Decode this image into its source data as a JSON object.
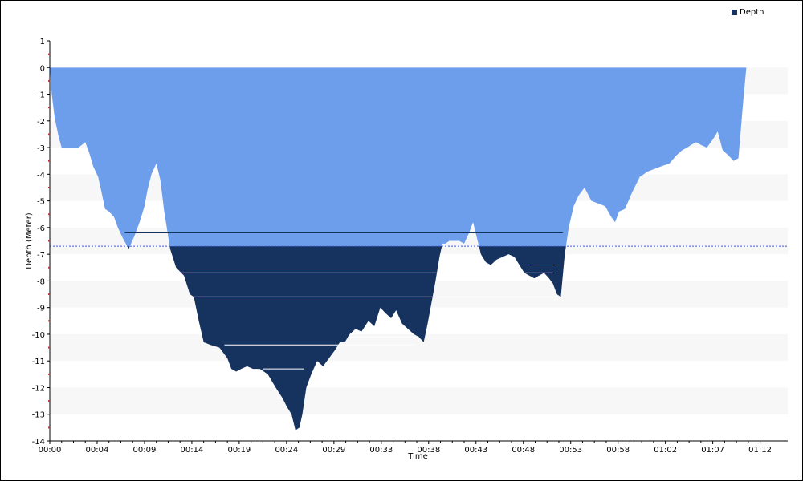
{
  "colors": {
    "shallow_fill": "#6d9eeb",
    "deep_fill": "#16325f",
    "threshold_line": "#3a5ed8",
    "band": "#f7f7f7",
    "tick_marks": "#c0392b"
  },
  "chart_data": {
    "type": "area",
    "title": "",
    "xlabel": "Time",
    "ylabel": "Depth (Meter)",
    "legend": {
      "position": "top-right",
      "entries": [
        "Depth"
      ]
    },
    "grid": "alternating horizontal bands",
    "ylim": [
      -14,
      1
    ],
    "yticks": [
      1,
      0,
      -1,
      -2,
      -3,
      -4,
      -5,
      -6,
      -7,
      -8,
      -9,
      -10,
      -11,
      -12,
      -13,
      -14
    ],
    "ytick_labels": [
      "1",
      "0",
      "-1",
      "-2",
      "-3",
      "-4",
      "-5",
      "-6",
      "-7",
      "-8",
      "-9",
      "-10",
      "-11",
      "-12",
      "-13",
      "-14"
    ],
    "xlim_minutes": [
      0,
      74.8
    ],
    "xticks_minutes": [
      0,
      4.8,
      9.6,
      14.4,
      19.2,
      24,
      28.8,
      33.6,
      38.4,
      43.2,
      48,
      52.8,
      57.6,
      62.4,
      67.2,
      72
    ],
    "xtick_labels": [
      "00:00",
      "00:04",
      "00:09",
      "00:14",
      "00:19",
      "00:24",
      "00:29",
      "00:33",
      "00:38",
      "00:43",
      "00:48",
      "00:53",
      "00:58",
      "01:02",
      "01:07",
      "01:12"
    ],
    "threshold_depth": -6.7,
    "series": [
      {
        "name": "Depth",
        "x_minutes": [
          0,
          0.2,
          0.5,
          0.9,
          1.2,
          1.6,
          2.2,
          2.9,
          3.6,
          4.0,
          4.4,
          4.9,
          5.2,
          5.6,
          6.0,
          6.5,
          6.9,
          7.4,
          8.0,
          8.6,
          9.1,
          9.6,
          9.9,
          10.3,
          10.8,
          11.2,
          11.6,
          12.2,
          12.8,
          13.6,
          14.2,
          14.6,
          15.1,
          15.6,
          16.3,
          17.2,
          18.0,
          18.4,
          18.9,
          19.4,
          20.0,
          20.6,
          21.3,
          22.1,
          22.9,
          23.6,
          24.0,
          24.5,
          24.9,
          25.3,
          25.6,
          26.0,
          26.5,
          27.1,
          27.7,
          28.3,
          28.9,
          29.4,
          29.9,
          30.4,
          31.0,
          31.6,
          32.3,
          32.9,
          33.5,
          34.0,
          34.6,
          35.1,
          35.7,
          36.3,
          36.9,
          37.4,
          37.9,
          38.3,
          38.6,
          39.1,
          39.5,
          39.8,
          40.1,
          40.5,
          41.0,
          41.5,
          42.0,
          42.5,
          42.9,
          43.3,
          43.7,
          44.2,
          44.7,
          45.3,
          45.9,
          46.5,
          47.1,
          47.6,
          48.1,
          48.6,
          49.1,
          49.6,
          50.1,
          50.6,
          51.0,
          51.4,
          51.8,
          52.2,
          52.6,
          53.1,
          53.6,
          54.2,
          54.9,
          55.6,
          56.3,
          56.9,
          57.3,
          57.7,
          58.3,
          59.0,
          59.8,
          60.6,
          61.3,
          62.0,
          62.8,
          63.5,
          64.1,
          64.6,
          65.0,
          65.5,
          66.0,
          66.6,
          67.2,
          67.7,
          68.2,
          68.8,
          69.3,
          69.8,
          70.3,
          70.6
        ],
        "y_depth": [
          0,
          -1.0,
          -1.9,
          -2.6,
          -3.0,
          -3.0,
          -3.0,
          -3.0,
          -2.8,
          -3.2,
          -3.7,
          -4.1,
          -4.6,
          -5.3,
          -5.4,
          -5.6,
          -6.0,
          -6.4,
          -6.8,
          -6.3,
          -5.8,
          -5.2,
          -4.6,
          -4.0,
          -3.6,
          -4.2,
          -5.4,
          -6.8,
          -7.5,
          -7.8,
          -8.5,
          -8.6,
          -9.5,
          -10.3,
          -10.4,
          -10.5,
          -10.9,
          -11.3,
          -11.4,
          -11.3,
          -11.2,
          -11.3,
          -11.3,
          -11.5,
          -12.0,
          -12.4,
          -12.7,
          -13.0,
          -13.6,
          -13.5,
          -13.0,
          -12.0,
          -11.5,
          -11.0,
          -11.2,
          -10.9,
          -10.6,
          -10.3,
          -10.3,
          -10.0,
          -9.8,
          -9.9,
          -9.5,
          -9.7,
          -9.0,
          -9.2,
          -9.4,
          -9.1,
          -9.6,
          -9.8,
          -10.0,
          -10.1,
          -10.3,
          -9.6,
          -9.0,
          -8.0,
          -7.1,
          -6.6,
          -6.6,
          -6.5,
          -6.5,
          -6.5,
          -6.6,
          -6.2,
          -5.8,
          -6.4,
          -7.0,
          -7.3,
          -7.4,
          -7.2,
          -7.1,
          -7.0,
          -7.1,
          -7.4,
          -7.7,
          -7.8,
          -7.9,
          -7.8,
          -7.7,
          -7.9,
          -8.1,
          -8.5,
          -8.6,
          -7.0,
          -6.0,
          -5.2,
          -4.8,
          -4.5,
          -5.0,
          -5.1,
          -5.2,
          -5.6,
          -5.8,
          -5.4,
          -5.3,
          -4.7,
          -4.1,
          -3.9,
          -3.8,
          -3.7,
          -3.6,
          -3.3,
          -3.1,
          -3.0,
          -2.9,
          -2.8,
          -2.9,
          -3.0,
          -2.7,
          -2.4,
          -3.1,
          -3.3,
          -3.5,
          -3.4,
          -1.2,
          0
        ]
      }
    ],
    "horizontal_lines": [
      {
        "depth": -6.2,
        "from_minutes": 7.6,
        "to_minutes": 52.0
      },
      {
        "depth": -7.4,
        "from_minutes": 48.8,
        "to_minutes": 51.5
      },
      {
        "depth": -7.7,
        "from_minutes": 12.5,
        "to_minutes": 51.0
      },
      {
        "depth": -8.6,
        "from_minutes": 14.6,
        "to_minutes": 51.8
      },
      {
        "depth": -10.1,
        "from_minutes": 30.2,
        "to_minutes": 37.4
      },
      {
        "depth": -10.4,
        "from_minutes": 17.7,
        "to_minutes": 37.0
      },
      {
        "depth": -11.3,
        "from_minutes": 21.6,
        "to_minutes": 25.8
      }
    ]
  }
}
